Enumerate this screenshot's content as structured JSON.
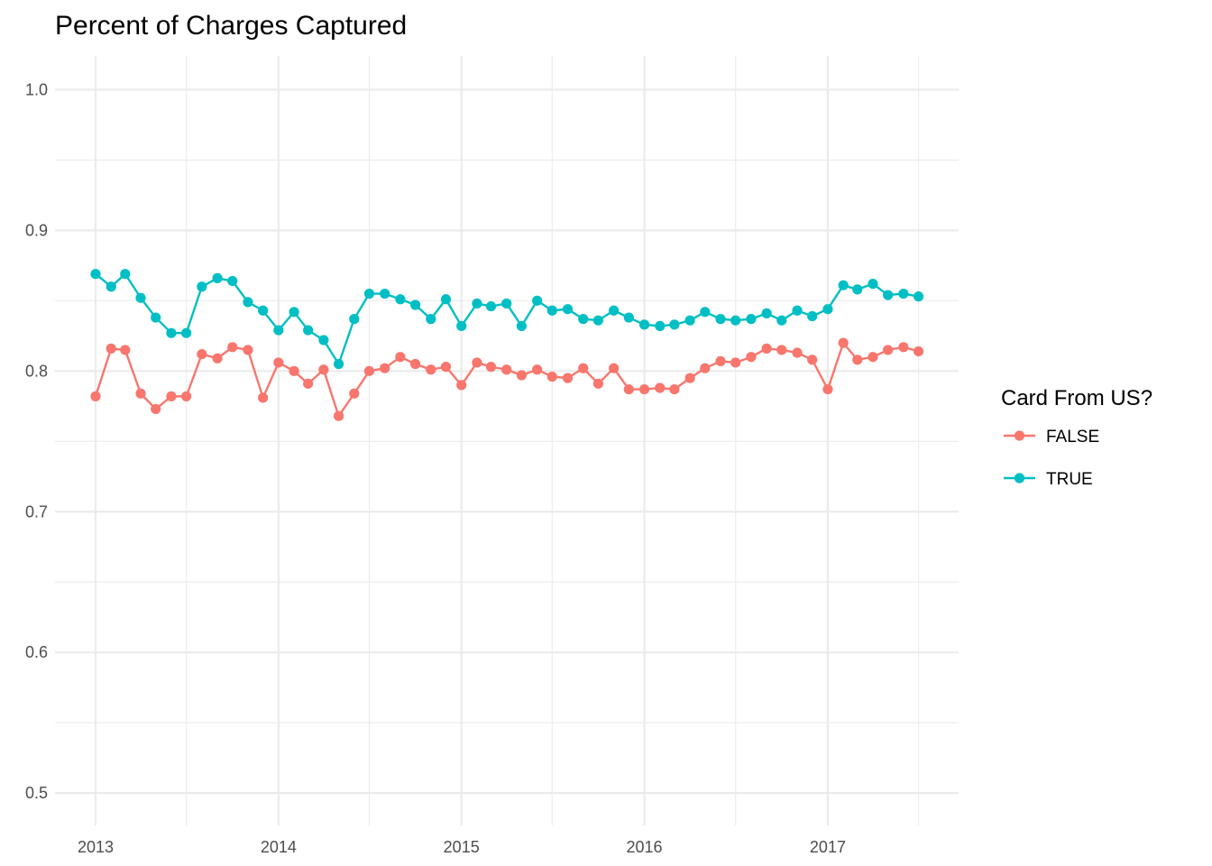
{
  "chart_data": {
    "type": "line",
    "title": "Percent of Charges Captured",
    "xlabel": "",
    "ylabel": "",
    "x_ticks": [
      "2013",
      "2014",
      "2015",
      "2016",
      "2017"
    ],
    "y_ticks": [
      "0.5",
      "0.6",
      "0.7",
      "0.8",
      "0.9",
      "1.0"
    ],
    "xlim": [
      "2012-10-12",
      "2017-09-19"
    ],
    "ylim": [
      0.477,
      1.024
    ],
    "grid": true,
    "legend": {
      "title": "Card From US?",
      "position": "right"
    },
    "x": [
      "2013-01",
      "2013-02",
      "2013-03",
      "2013-04",
      "2013-05",
      "2013-06",
      "2013-07",
      "2013-08",
      "2013-09",
      "2013-10",
      "2013-11",
      "2013-12",
      "2014-01",
      "2014-02",
      "2014-03",
      "2014-04",
      "2014-05",
      "2014-06",
      "2014-07",
      "2014-08",
      "2014-09",
      "2014-10",
      "2014-11",
      "2014-12",
      "2015-01",
      "2015-02",
      "2015-03",
      "2015-04",
      "2015-05",
      "2015-06",
      "2015-07",
      "2015-08",
      "2015-09",
      "2015-10",
      "2015-11",
      "2015-12",
      "2016-01",
      "2016-02",
      "2016-03",
      "2016-04",
      "2016-05",
      "2016-06",
      "2016-07",
      "2016-08",
      "2016-09",
      "2016-10",
      "2016-11",
      "2016-12",
      "2017-01",
      "2017-02",
      "2017-03",
      "2017-04",
      "2017-05",
      "2017-06",
      "2017-07"
    ],
    "series": [
      {
        "name": "FALSE",
        "color": "#F8766D",
        "values": [
          0.782,
          0.816,
          0.815,
          0.784,
          0.773,
          0.782,
          0.782,
          0.812,
          0.809,
          0.817,
          0.815,
          0.781,
          0.806,
          0.8,
          0.791,
          0.801,
          0.768,
          0.784,
          0.8,
          0.802,
          0.81,
          0.805,
          0.801,
          0.803,
          0.79,
          0.806,
          0.803,
          0.801,
          0.797,
          0.801,
          0.796,
          0.795,
          0.802,
          0.791,
          0.802,
          0.787,
          0.787,
          0.788,
          0.787,
          0.795,
          0.802,
          0.807,
          0.806,
          0.81,
          0.816,
          0.815,
          0.813,
          0.808,
          0.787,
          0.82,
          0.808,
          0.81,
          0.815,
          0.817,
          0.814
        ]
      },
      {
        "name": "TRUE",
        "color": "#00BFC4",
        "values": [
          0.869,
          0.86,
          0.869,
          0.852,
          0.838,
          0.827,
          0.827,
          0.86,
          0.866,
          0.864,
          0.849,
          0.843,
          0.829,
          0.842,
          0.829,
          0.822,
          0.805,
          0.837,
          0.855,
          0.855,
          0.851,
          0.847,
          0.837,
          0.851,
          0.832,
          0.848,
          0.846,
          0.848,
          0.832,
          0.85,
          0.843,
          0.844,
          0.837,
          0.836,
          0.843,
          0.838,
          0.833,
          0.832,
          0.833,
          0.836,
          0.842,
          0.837,
          0.836,
          0.837,
          0.841,
          0.836,
          0.843,
          0.839,
          0.844,
          0.861,
          0.858,
          0.862,
          0.854,
          0.855,
          0.853
        ]
      }
    ]
  }
}
